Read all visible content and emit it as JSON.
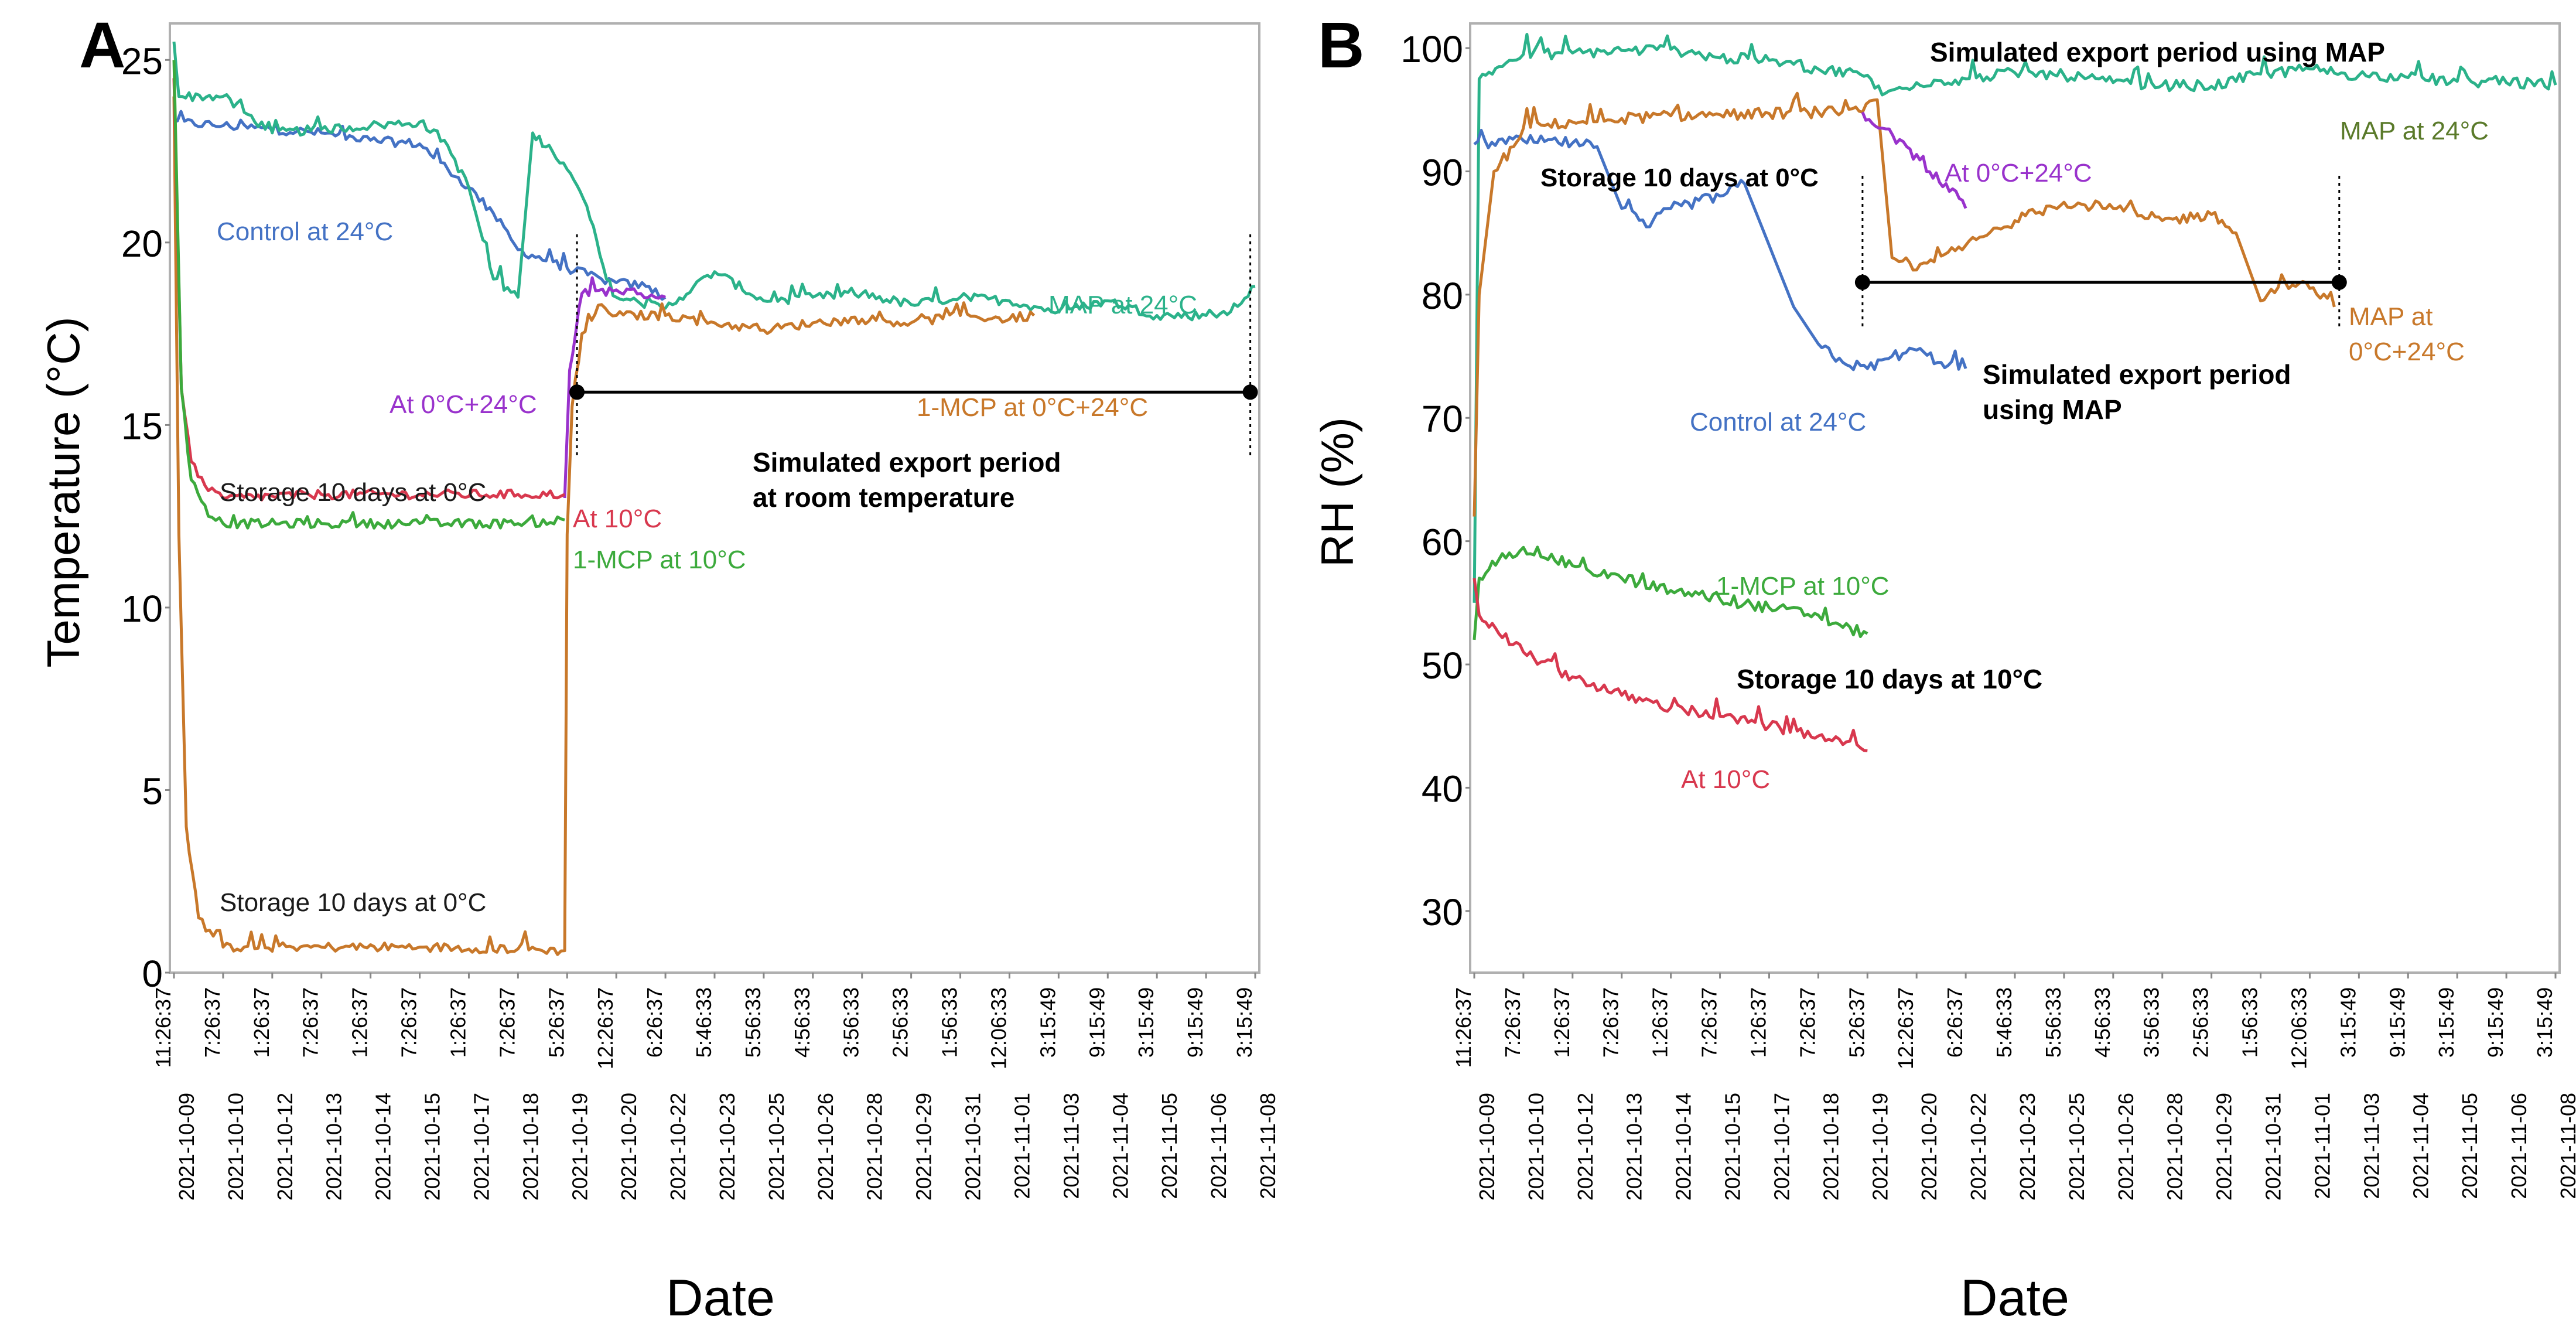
{
  "x_tick_labels": [
    [
      "2021-10-09",
      "11:26:37"
    ],
    [
      "2021-10-10",
      "7:26:37"
    ],
    [
      "2021-10-12",
      "1:26:37"
    ],
    [
      "2021-10-13",
      "7:26:37"
    ],
    [
      "2021-10-14",
      "1:26:37"
    ],
    [
      "2021-10-15",
      "7:26:37"
    ],
    [
      "2021-10-17",
      "1:26:37"
    ],
    [
      "2021-10-18",
      "7:26:37"
    ],
    [
      "2021-10-19",
      "5:26:37"
    ],
    [
      "2021-10-20",
      "12:26:37"
    ],
    [
      "2021-10-22",
      "6:26:37"
    ],
    [
      "2021-10-23",
      "5:46:33"
    ],
    [
      "2021-10-25",
      "5:56:33"
    ],
    [
      "2021-10-26",
      "4:56:33"
    ],
    [
      "2021-10-28",
      "3:56:33"
    ],
    [
      "2021-10-29",
      "2:56:33"
    ],
    [
      "2021-10-31",
      "1:56:33"
    ],
    [
      "2021-11-01",
      "12:06:33"
    ],
    [
      "2021-11-03",
      "3:15:49"
    ],
    [
      "2021-11-04",
      "9:15:49"
    ],
    [
      "2021-11-05",
      "3:15:49"
    ],
    [
      "2021-11-06",
      "9:15:49"
    ],
    [
      "2021-11-08",
      "3:15:49"
    ]
  ],
  "colors": {
    "control": "#4472C4",
    "map": "#2BB28A",
    "purple": "#9932CC",
    "orange": "#C8782A",
    "red": "#D8384E",
    "green": "#3CAA3C",
    "frame": "#b0b0b0",
    "line": "#000000"
  },
  "chart_data": [
    {
      "panel": "A",
      "type": "line",
      "xlabel": "Date",
      "ylabel": "Temperature (°C)",
      "ylim": [
        0,
        26
      ],
      "yticks": [
        0,
        5,
        10,
        15,
        20,
        25
      ],
      "x_index_range": [
        0,
        22
      ],
      "series": [
        {
          "name": "Control at 24°C",
          "color_key": "control",
          "points": [
            [
              0,
              23.3
            ],
            [
              1,
              23.2
            ],
            [
              3,
              23.0
            ],
            [
              4,
              22.8
            ],
            [
              5,
              22.7
            ],
            [
              6,
              21.5
            ],
            [
              6.5,
              20.8
            ],
            [
              7,
              19.8
            ],
            [
              8,
              19.3
            ],
            [
              8.7,
              19.0
            ],
            [
              9,
              18.9
            ],
            [
              9.6,
              18.8
            ],
            [
              10,
              18.5
            ]
          ]
        },
        {
          "name": "MAP at 24°C",
          "color_key": "map",
          "points": [
            [
              0,
              25.5
            ],
            [
              0.1,
              24.0
            ],
            [
              1,
              24.0
            ],
            [
              2,
              23.0
            ],
            [
              3,
              23.1
            ],
            [
              4,
              23.2
            ],
            [
              5,
              23.3
            ],
            [
              5.5,
              22.8
            ],
            [
              6,
              21.5
            ],
            [
              6.5,
              19.0
            ],
            [
              7,
              18.5
            ],
            [
              7.3,
              23.0
            ],
            [
              7.7,
              22.5
            ],
            [
              8,
              22.0
            ],
            [
              8.4,
              21.0
            ],
            [
              8.8,
              19.0
            ],
            [
              9,
              18.5
            ],
            [
              10,
              18.2
            ],
            [
              11,
              19.2
            ],
            [
              12,
              18.4
            ],
            [
              13,
              18.5
            ],
            [
              14,
              18.6
            ],
            [
              15,
              18.3
            ],
            [
              16,
              18.5
            ],
            [
              17,
              18.4
            ],
            [
              18,
              18.1
            ],
            [
              19,
              18.4
            ],
            [
              20,
              18.0
            ],
            [
              21,
              18.0
            ],
            [
              21.5,
              18.1
            ],
            [
              22,
              18.8
            ]
          ]
        },
        {
          "name": "At 0°C+24°C",
          "color_key": "purple",
          "points": [
            [
              7.95,
              13.0
            ],
            [
              8.05,
              16.5
            ],
            [
              8.3,
              18.6
            ],
            [
              9,
              18.7
            ],
            [
              9.5,
              18.6
            ],
            [
              10,
              18.5
            ]
          ]
        },
        {
          "name": "1-MCP at 0°C+24°C",
          "color_key": "orange",
          "points": [
            [
              0,
              24.0
            ],
            [
              0.1,
              12.0
            ],
            [
              0.25,
              4.0
            ],
            [
              0.5,
              1.5
            ],
            [
              0.8,
              1.0
            ],
            [
              1,
              0.7
            ],
            [
              3,
              0.7
            ],
            [
              5,
              0.7
            ],
            [
              7,
              0.65
            ],
            [
              7.95,
              0.6
            ],
            [
              8.0,
              12.0
            ],
            [
              8.1,
              15.5
            ],
            [
              8.3,
              17.5
            ],
            [
              8.7,
              18.3
            ],
            [
              9,
              18.0
            ],
            [
              10,
              18.0
            ],
            [
              11,
              17.8
            ],
            [
              12,
              17.6
            ],
            [
              13,
              17.8
            ],
            [
              14,
              17.9
            ],
            [
              15,
              17.8
            ],
            [
              16,
              18.0
            ],
            [
              17,
              17.9
            ],
            [
              17.5,
              18.0
            ]
          ]
        },
        {
          "name": "At 10°C",
          "color_key": "red",
          "points": [
            [
              0,
              24.5
            ],
            [
              0.15,
              16.0
            ],
            [
              0.35,
              14.0
            ],
            [
              0.7,
              13.2
            ],
            [
              1,
              13.0
            ],
            [
              3,
              13.1
            ],
            [
              5,
              13.1
            ],
            [
              7,
              13.1
            ],
            [
              7.95,
              13.1
            ]
          ]
        },
        {
          "name": "1-MCP at 10°C",
          "color_key": "green",
          "points": [
            [
              0,
              25.0
            ],
            [
              0.15,
              16.0
            ],
            [
              0.35,
              13.5
            ],
            [
              0.7,
              12.5
            ],
            [
              1,
              12.3
            ],
            [
              3,
              12.3
            ],
            [
              5,
              12.3
            ],
            [
              7,
              12.3
            ],
            [
              7.95,
              12.4
            ]
          ]
        }
      ],
      "annotations": {
        "panel_letter": "A",
        "control": "Control at 24°C",
        "map": "MAP at 24°C",
        "purple": "At 0°C+24°C",
        "orange": "1-MCP at 0°C+24°C",
        "storage_upper": "Storage 10 days at 0°C",
        "red": "At 10°C",
        "green": "1-MCP at 10°C",
        "storage_lower": "Storage 10 days at 0°C",
        "export_line1": "Simulated export period",
        "export_line2": "at room temperature"
      },
      "export_period": {
        "from_index": 8.2,
        "to_index": 21.9,
        "y": 15.9
      }
    },
    {
      "panel": "B",
      "type": "line",
      "xlabel": "Date",
      "ylabel": "RH (%)",
      "ylim": [
        25,
        102
      ],
      "yticks": [
        30,
        40,
        50,
        60,
        70,
        80,
        90,
        100
      ],
      "x_index_range": [
        0,
        22
      ],
      "series": [
        {
          "name": "MAP at 24°C",
          "color_key": "map",
          "points": [
            [
              0,
              55
            ],
            [
              0.1,
              97.5
            ],
            [
              0.5,
              98.5
            ],
            [
              1,
              99.5
            ],
            [
              2,
              99.6
            ],
            [
              3,
              99.8
            ],
            [
              4,
              99.9
            ],
            [
              5,
              99.2
            ],
            [
              6,
              99.0
            ],
            [
              7,
              98.3
            ],
            [
              8,
              97.8
            ],
            [
              8.3,
              96.2
            ],
            [
              9,
              97.2
            ],
            [
              10,
              97.5
            ],
            [
              11,
              98.0
            ],
            [
              12,
              97.8
            ],
            [
              13,
              97.2
            ],
            [
              14,
              97.0
            ],
            [
              15,
              96.9
            ],
            [
              16,
              97.9
            ],
            [
              17,
              98.3
            ],
            [
              18,
              97.8
            ],
            [
              19,
              97.6
            ],
            [
              20,
              97.3
            ],
            [
              21,
              97.2
            ],
            [
              22,
              97.0
            ]
          ]
        },
        {
          "name": "Control at 24°C",
          "color_key": "control",
          "points": [
            [
              0,
              92.2
            ],
            [
              1,
              92.5
            ],
            [
              2,
              92.3
            ],
            [
              2.5,
              92.0
            ],
            [
              3,
              87.0
            ],
            [
              3.5,
              85.5
            ],
            [
              4,
              87.0
            ],
            [
              5,
              88.0
            ],
            [
              5.5,
              89.0
            ],
            [
              6,
              84.0
            ],
            [
              6.5,
              79.0
            ],
            [
              7,
              76.0
            ],
            [
              7.5,
              74.5
            ],
            [
              8,
              74.0
            ],
            [
              8.5,
              75.0
            ],
            [
              9,
              75.5
            ],
            [
              9.5,
              74.5
            ],
            [
              10,
              74.0
            ]
          ]
        },
        {
          "name": "MAP at 0°C+24°C",
          "color_key": "orange",
          "points": [
            [
              0,
              62
            ],
            [
              0.1,
              80
            ],
            [
              0.4,
              90
            ],
            [
              0.8,
              92.0
            ],
            [
              1,
              93.5
            ],
            [
              2,
              94.0
            ],
            [
              3,
              94.3
            ],
            [
              4,
              94.5
            ],
            [
              5,
              94.6
            ],
            [
              6,
              94.7
            ],
            [
              7,
              94.8
            ],
            [
              7.9,
              94.8
            ],
            [
              8.2,
              95.8
            ],
            [
              8.5,
              83.0
            ],
            [
              9,
              82.0
            ],
            [
              10,
              84.0
            ],
            [
              11,
              86.0
            ],
            [
              12,
              87.5
            ],
            [
              13,
              87.0
            ],
            [
              14,
              86.0
            ],
            [
              15,
              86.5
            ],
            [
              15.5,
              85.0
            ],
            [
              16,
              79.5
            ],
            [
              16.5,
              81.0
            ],
            [
              17,
              80.5
            ],
            [
              17.5,
              79.0
            ]
          ]
        },
        {
          "name": "At 0°C+24°C",
          "color_key": "purple",
          "points": [
            [
              7.9,
              94.8
            ],
            [
              8.3,
              93.5
            ],
            [
              8.8,
              92.0
            ],
            [
              9.2,
              90.0
            ],
            [
              9.6,
              89.0
            ],
            [
              10,
              87.0
            ]
          ]
        },
        {
          "name": "1-MCP at 10°C",
          "color_key": "green",
          "points": [
            [
              0,
              52.0
            ],
            [
              0.1,
              57.0
            ],
            [
              0.5,
              58.5
            ],
            [
              1,
              59.5
            ],
            [
              2,
              58.0
            ],
            [
              3,
              57.0
            ],
            [
              4,
              56.0
            ],
            [
              5,
              55.3
            ],
            [
              6,
              54.6
            ],
            [
              7,
              54.0
            ],
            [
              7.5,
              53.0
            ],
            [
              8,
              52.5
            ]
          ]
        },
        {
          "name": "At 10°C",
          "color_key": "red",
          "points": [
            [
              0,
              57.0
            ],
            [
              0.1,
              54.0
            ],
            [
              0.5,
              52.5
            ],
            [
              1,
              51.0
            ],
            [
              2,
              49.0
            ],
            [
              3,
              47.5
            ],
            [
              4,
              46.5
            ],
            [
              5,
              45.8
            ],
            [
              6,
              45.0
            ],
            [
              7,
              44.2
            ],
            [
              7.5,
              43.5
            ],
            [
              8,
              43.0
            ]
          ]
        }
      ],
      "annotations": {
        "panel_letter": "B",
        "export_top": "Simulated export period using MAP",
        "map": "MAP at 24°C",
        "storage_0c": "Storage 10 days at 0°C",
        "purple": "At 0°C+24°C",
        "orange_line1": "MAP at",
        "orange_line2": "0°C+24°C",
        "export_mid_line1": "Simulated export period",
        "export_mid_line2": "using MAP",
        "control": "Control at 24°C",
        "green": "1-MCP at 10°C",
        "storage_10c": "Storage 10 days at 10°C",
        "red": "At 10°C"
      },
      "export_period": {
        "from_index": 7.9,
        "to_index": 17.6,
        "y": 81.0
      }
    }
  ]
}
